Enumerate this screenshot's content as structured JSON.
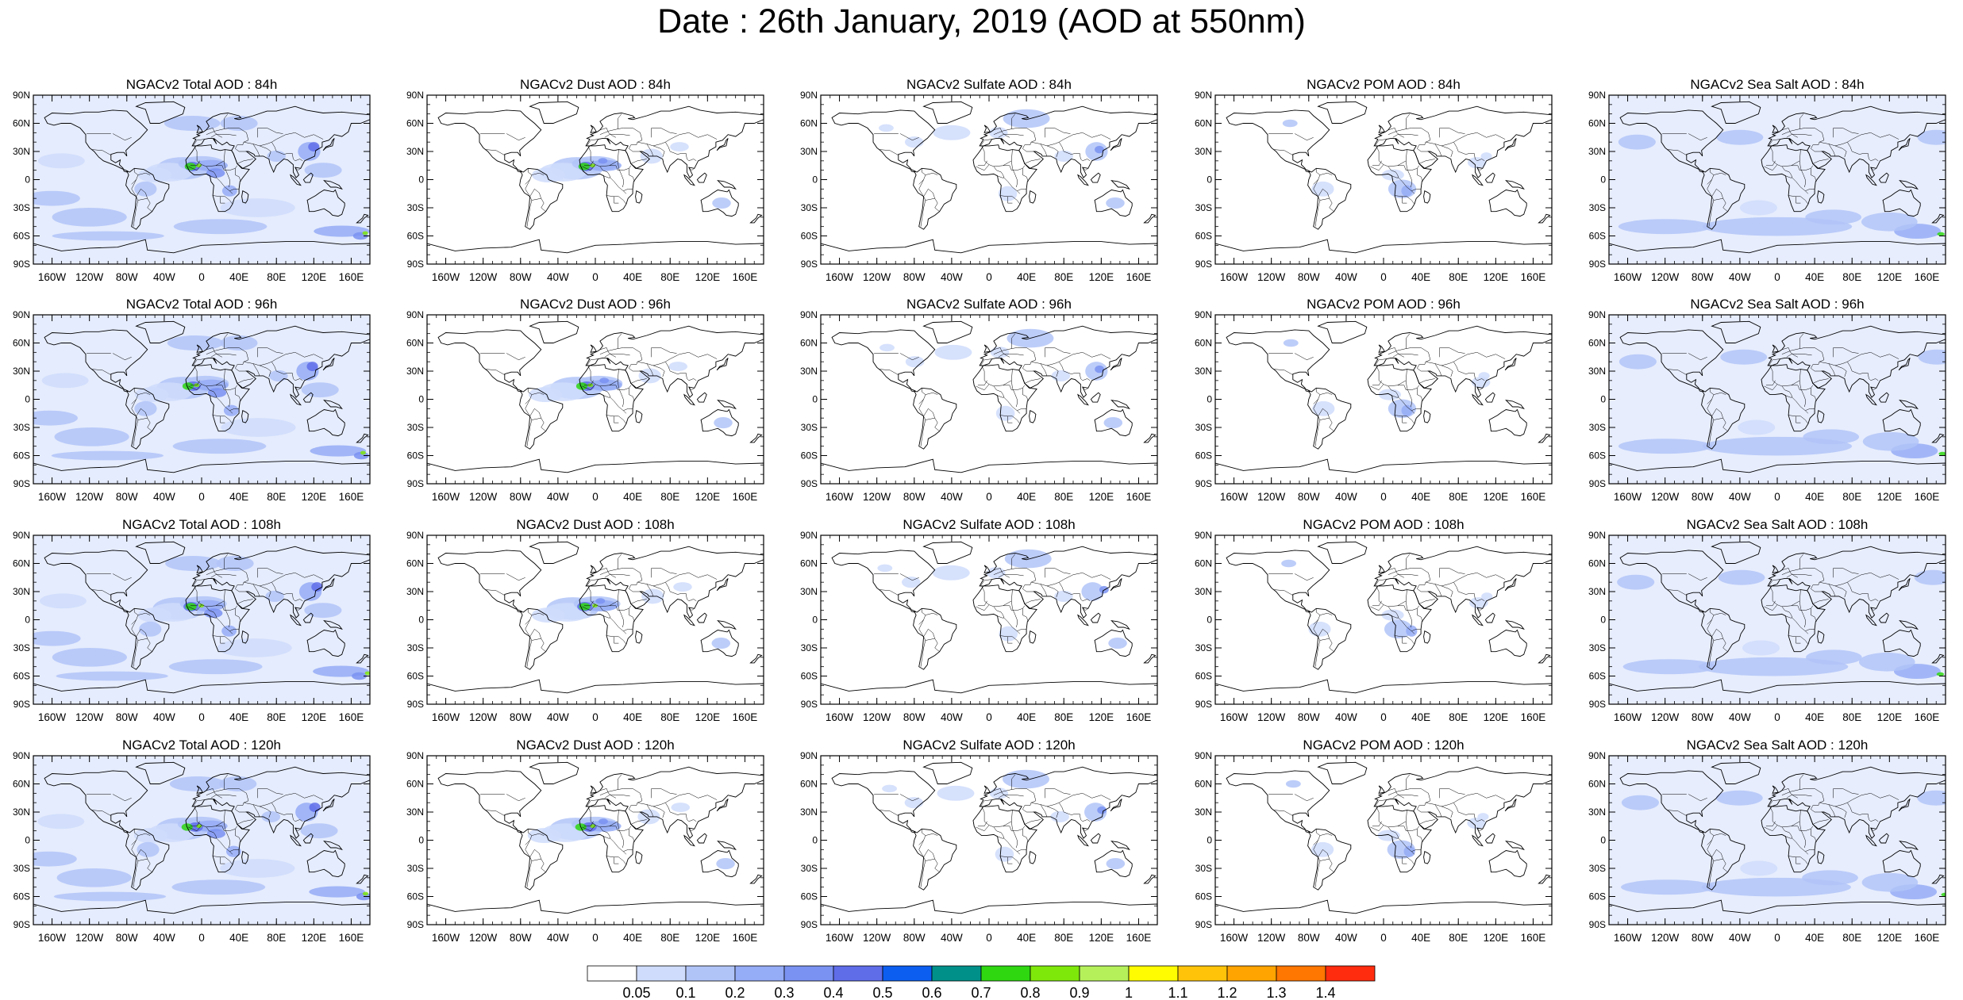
{
  "title": "Date : 26th January, 2019 (AOD at 550nm)",
  "model": "NGACv2",
  "panel_titles": [
    [
      "NGACv2 Total AOD : 84h",
      "NGACv2 Dust AOD : 84h",
      "NGACv2 Sulfate AOD : 84h",
      "NGACv2 POM AOD : 84h",
      "NGACv2 Sea Salt AOD : 84h"
    ],
    [
      "NGACv2 Total AOD : 96h",
      "NGACv2 Dust AOD : 96h",
      "NGACv2 Sulfate AOD : 96h",
      "NGACv2 POM AOD : 96h",
      "NGACv2 Sea Salt AOD : 96h"
    ],
    [
      "NGACv2 Total AOD : 108h",
      "NGACv2 Dust AOD : 108h",
      "NGACv2 Sulfate AOD : 108h",
      "NGACv2 POM AOD : 108h",
      "NGACv2 Sea Salt AOD : 108h"
    ],
    [
      "NGACv2 Total AOD : 120h",
      "NGACv2 Dust AOD : 120h",
      "NGACv2 Sulfate AOD : 120h",
      "NGACv2 POM AOD : 120h",
      "NGACv2 Sea Salt  AOD : 120h"
    ]
  ],
  "species": [
    "Total",
    "Dust",
    "Sulfate",
    "POM",
    "Sea Salt"
  ],
  "forecast_hours": [
    "84h",
    "96h",
    "108h",
    "120h"
  ],
  "lat_ticks": [
    "90N",
    "60N",
    "30N",
    "0",
    "30S",
    "60S",
    "90S"
  ],
  "lon_ticks": [
    "160W",
    "120W",
    "80W",
    "40W",
    "0",
    "40E",
    "80E",
    "120E",
    "160E"
  ],
  "colorbar": {
    "colors": [
      "#ffffff",
      "#cfdcfb",
      "#b1c4f8",
      "#95acf6",
      "#7a92f1",
      "#5f6de9",
      "#0c5ef0",
      "#00908a",
      "#2fd711",
      "#7fe80b",
      "#b5f05a",
      "#fffb00",
      "#ffc40a",
      "#ffa400",
      "#ff7600",
      "#ff2c0e"
    ],
    "labels": [
      "0.05",
      "0.1",
      "0.2",
      "0.3",
      "0.4",
      "0.5",
      "0.6",
      "0.7",
      "0.8",
      "0.9",
      "1",
      "1.1",
      "1.2",
      "1.3",
      "1.4"
    ]
  }
}
